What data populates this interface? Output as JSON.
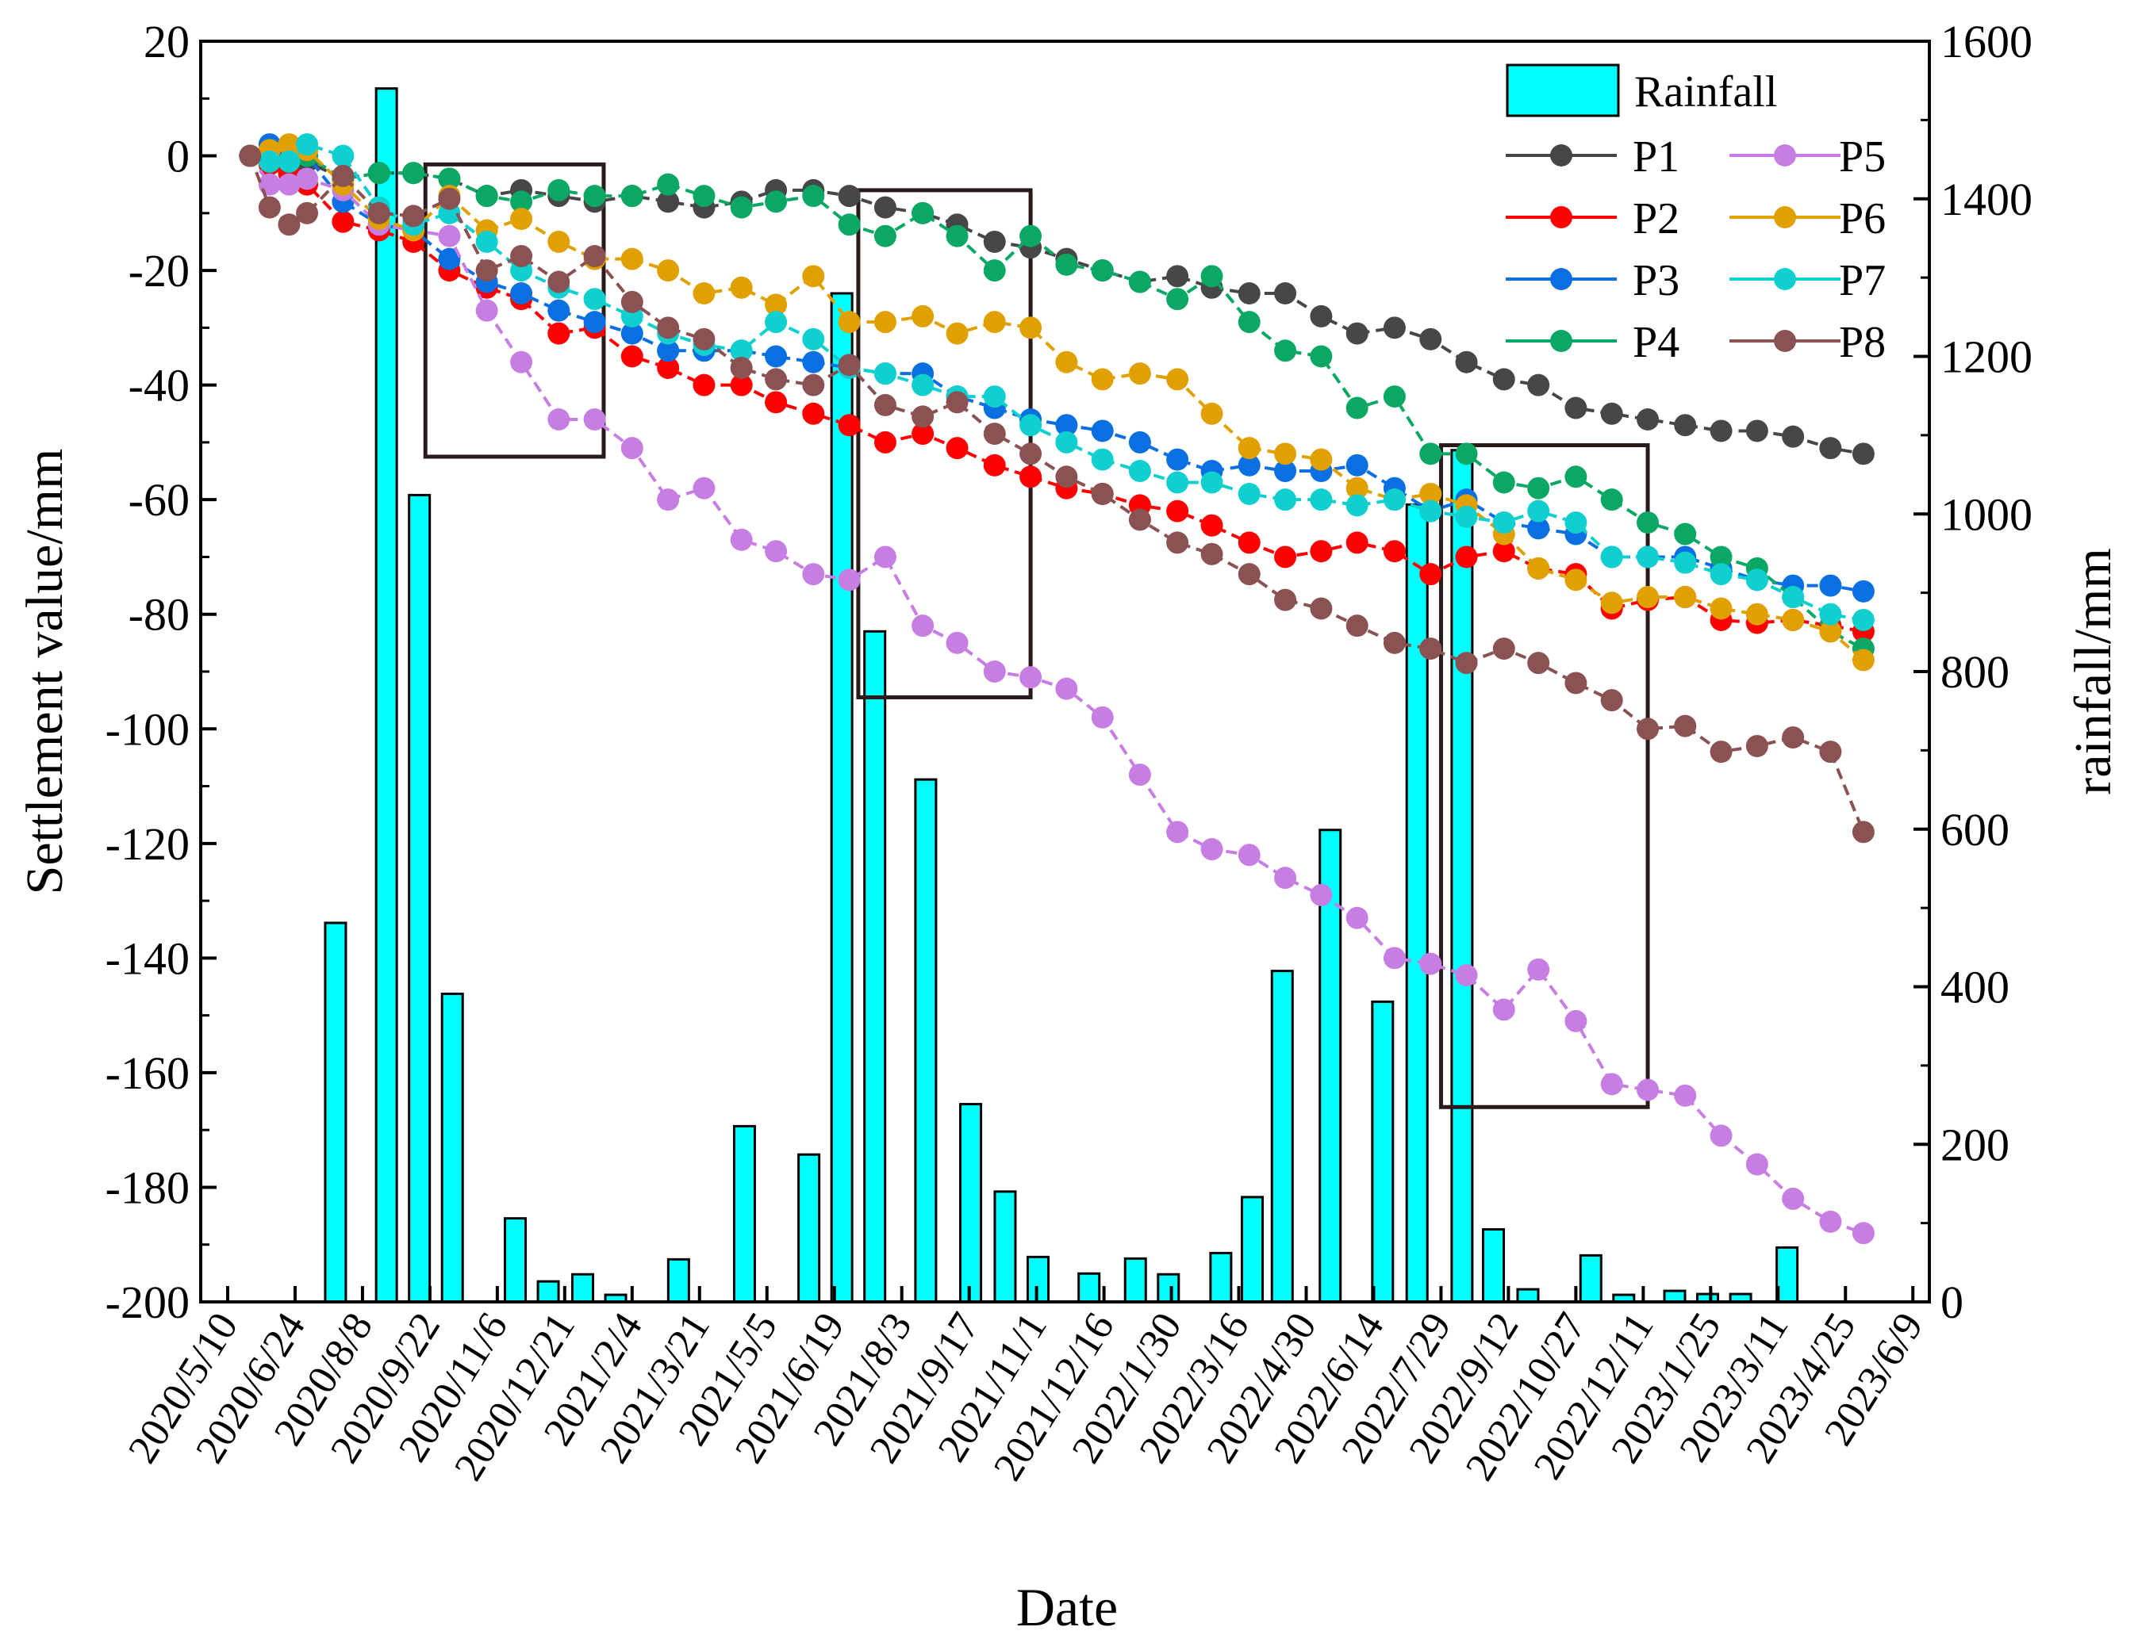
{
  "chart_data": {
    "type": "line+bar",
    "xlabel": "Date",
    "ylabel_left": "Settlement value/mm",
    "ylabel_right": "rainfall/mm",
    "ylim_left": [
      -200,
      20
    ],
    "ylim_right": [
      0,
      1600
    ],
    "xlim_days": [
      -18,
      1136
    ],
    "y_ticks_left": [
      20,
      0,
      -20,
      -40,
      -60,
      -80,
      -100,
      -120,
      -140,
      -160,
      -180,
      -200
    ],
    "y_ticks_right": [
      1600,
      1400,
      1200,
      1000,
      800,
      600,
      400,
      200,
      0
    ],
    "x_ticks": [
      "2020/5/10",
      "2020/6/24",
      "2020/8/8",
      "2020/9/22",
      "2020/11/6",
      "2020/12/21",
      "2021/2/4",
      "2021/3/21",
      "2021/5/5",
      "2021/6/19",
      "2021/8/3",
      "2021/9/17",
      "2021/11/1",
      "2021/12/16",
      "2022/1/30",
      "2022/3/16",
      "2022/4/30",
      "2022/6/14",
      "2022/7/29",
      "2022/9/12",
      "2022/10/27",
      "2022/12/11",
      "2023/1/25",
      "2023/3/11",
      "2023/4/25",
      "2023/6/9"
    ],
    "x_tick_step_days": 45,
    "x_days_from_2020_5_10": [
      15,
      28,
      41,
      53,
      77,
      101,
      124,
      148,
      173,
      196,
      221,
      245,
      270,
      294,
      318,
      343,
      366,
      391,
      415,
      439,
      464,
      487,
      512,
      536,
      560,
      584,
      609,
      634,
      657,
      682,
      706,
      730,
      754,
      779,
      803,
      827,
      852,
      875,
      900,
      924,
      948,
      973,
      997,
      1021,
      1045,
      1070,
      1092
    ],
    "series": [
      {
        "name": "P1",
        "color": "#474747",
        "values": [
          0,
          -1,
          0,
          -1,
          -4,
          -3,
          -3,
          -4,
          -7,
          -6,
          -7,
          -8,
          -7,
          -8,
          -9,
          -8,
          -6,
          -6,
          -7,
          -9,
          -10,
          -12,
          -15,
          -16,
          -18,
          -20,
          -22,
          -21,
          -23,
          -24,
          -24,
          -28,
          -31,
          -30,
          -32,
          -36,
          -39,
          -40,
          -44,
          -45,
          -46,
          -47,
          -48,
          -48,
          -49,
          -51,
          -52
        ]
      },
      {
        "name": "P2",
        "color": "#ff0000",
        "values": [
          0,
          -1.5,
          -3,
          -5,
          -11.5,
          -13,
          -15,
          -20,
          -23,
          -25,
          -31,
          -30,
          -35,
          -37,
          -40,
          -40,
          -43,
          -45,
          -47,
          -50,
          -48.5,
          -51,
          -54,
          -56,
          -58,
          -59,
          -61,
          -62,
          -64.5,
          -67.5,
          -70,
          -69,
          -67.5,
          -69,
          -73,
          -70,
          -69,
          -72,
          -73,
          -79,
          -77.5,
          -77,
          -81,
          -81.5,
          -81,
          -82,
          -83
        ]
      },
      {
        "name": "P3",
        "color": "#0a6fe0",
        "values": [
          0,
          2,
          1,
          0,
          -8,
          -12,
          -13,
          -18,
          -22,
          -24,
          -27,
          -29,
          -31,
          -34,
          -34,
          -34,
          -35,
          -36,
          -37,
          -38,
          -38,
          -42,
          -44,
          -46,
          -47,
          -48,
          -50,
          -53,
          -55,
          -54,
          -55,
          -55,
          -54,
          -58,
          -62,
          -60,
          -64,
          -65,
          -66,
          -70,
          -70,
          -70,
          -72,
          -74,
          -75,
          -75,
          -76
        ]
      },
      {
        "name": "P4",
        "color": "#0aa864",
        "values": [
          0,
          -1,
          -1,
          0,
          -4,
          -3,
          -3,
          -4,
          -7,
          -8,
          -6,
          -7,
          -7,
          -5,
          -7,
          -9,
          -8,
          -7,
          -12,
          -14,
          -10,
          -14,
          -20,
          -14,
          -19,
          -20,
          -22,
          -25,
          -21,
          -29,
          -34,
          -35,
          -44,
          -42,
          -52,
          -52,
          -57,
          -58,
          -56,
          -60,
          -64,
          -66,
          -70,
          -72,
          -77,
          -83,
          -86
        ]
      },
      {
        "name": "P5",
        "color": "#c77ee2",
        "values": [
          0,
          -5,
          -5,
          -4,
          -6,
          -12,
          -13,
          -14,
          -27,
          -36,
          -46,
          -46,
          -51,
          -60,
          -58,
          -67,
          -69,
          -73,
          -74,
          -70,
          -82,
          -85,
          -90,
          -91,
          -93,
          -98,
          -108,
          -118,
          -121,
          -122,
          -126,
          -129,
          -133,
          -140,
          -141,
          -143,
          -149,
          -142,
          -151,
          -162,
          -163,
          -164,
          -171,
          -176,
          -182,
          -186,
          -188
        ]
      },
      {
        "name": "P6",
        "color": "#e0a000",
        "values": [
          0,
          1,
          2,
          1,
          -5,
          -11,
          -13,
          -7,
          -13,
          -11,
          -15,
          -18,
          -18,
          -20,
          -24,
          -23,
          -26,
          -21,
          -29,
          -29,
          -28,
          -31,
          -29,
          -30,
          -36,
          -39,
          -38,
          -39,
          -45,
          -51,
          -52,
          -53,
          -58,
          -60,
          -59,
          -61,
          -66,
          -72,
          -74,
          -78,
          -77,
          -77,
          -79,
          -80,
          -81,
          -83,
          -88
        ]
      },
      {
        "name": "P7",
        "color": "#10cfcf",
        "values": [
          0,
          -1,
          -1,
          2,
          0,
          -9,
          -12,
          -10,
          -15,
          -20,
          -23,
          -25,
          -28,
          -31,
          -33,
          -34,
          -29,
          -32,
          -37,
          -38,
          -40,
          -42,
          -42,
          -47,
          -50,
          -53,
          -55,
          -57,
          -57,
          -59,
          -60,
          -60,
          -61,
          -60,
          -62,
          -63,
          -64,
          -62,
          -64,
          -70,
          -70,
          -71,
          -73,
          -74,
          -77,
          -80,
          -81
        ]
      },
      {
        "name": "P8",
        "color": "#8a5252",
        "values": [
          0,
          -9,
          -12,
          -10,
          -3.5,
          -10,
          -10.5,
          -7.5,
          -20,
          -17.5,
          -22,
          -17.5,
          -25.5,
          -30,
          -32,
          -37,
          -39,
          -40,
          -36.5,
          -43.5,
          -45.5,
          -43,
          -48.5,
          -52,
          -56,
          -59,
          -63.5,
          -67.5,
          -69.5,
          -73,
          -77.5,
          -79,
          -82,
          -85,
          -86,
          -88.5,
          -86,
          -88.5,
          -92,
          -95,
          -100,
          -99.5,
          -104,
          -103,
          -101.5,
          -104,
          -118
        ]
      }
    ],
    "rainfall": {
      "name": "Rainfall",
      "color": "#00ffff",
      "days": [
        72,
        106,
        128,
        150,
        192,
        214,
        237,
        259,
        301,
        345,
        388,
        410,
        432,
        466,
        496,
        519,
        541,
        575,
        606,
        628,
        663,
        684,
        704,
        736,
        771,
        794,
        824,
        845,
        868,
        910,
        932,
        966,
        988,
        1010,
        1041
      ],
      "values": [
        481,
        1540,
        1024,
        391,
        106,
        26,
        35,
        9,
        54,
        223,
        187,
        1280,
        851,
        663,
        251,
        140,
        57,
        36,
        55,
        35,
        62,
        133,
        420,
        599,
        381,
        1012,
        1081,
        92,
        16,
        59,
        9,
        14,
        10,
        10,
        69
      ]
    },
    "highlight_boxes": [
      {
        "days": [
          132,
          251
        ],
        "settlement": [
          -1.5,
          -52.5
        ]
      },
      {
        "days": [
          421,
          536
        ],
        "settlement": [
          -6,
          -94.5
        ]
      },
      {
        "days": [
          810,
          948
        ],
        "settlement": [
          -50.5,
          -166
        ]
      }
    ],
    "legend": {
      "placement": "top-right",
      "entries": [
        "Rainfall",
        "P1",
        "P5",
        "P2",
        "P6",
        "P3",
        "P7",
        "P4",
        "P8"
      ]
    }
  }
}
